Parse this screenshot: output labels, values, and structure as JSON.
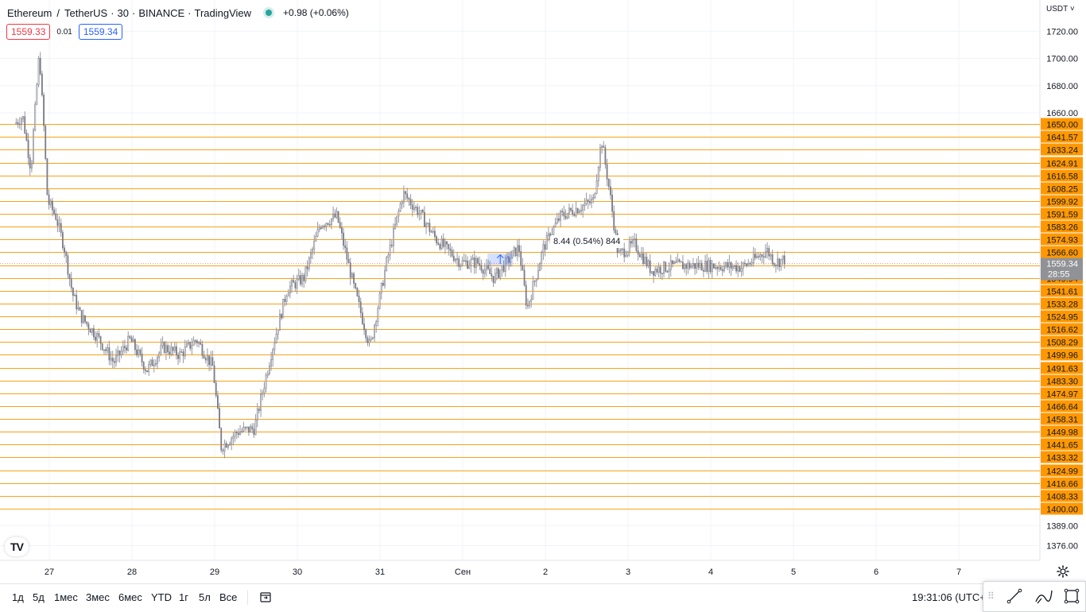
{
  "header": {
    "symbol": "Ethereum",
    "separator": "/",
    "quote": "TetherUS",
    "interval": "30",
    "exchange": "BINANCE",
    "brand": "TradingView",
    "change": "+0.98 (+0.06%)"
  },
  "quotes": {
    "bid": "1559.33",
    "spread": "0.01",
    "ask": "1559.34"
  },
  "currency": "USDT",
  "currency_caret": "˅",
  "measure_tooltip": "8.44 (0.54%) 844",
  "logo_text": "TV",
  "bottom_bar": {
    "ranges": [
      "1д",
      "5д",
      "1мес",
      "3мес",
      "6мес",
      "YTD",
      "1г",
      "5л",
      "Все"
    ],
    "clock": "19:31:06 (UTC+3)"
  },
  "chart_data": {
    "type": "candlestick",
    "y_axis": {
      "range": [
        1368,
        1728
      ],
      "tick_labels": [
        "1720.00",
        "1700.00",
        "1680.00",
        "1660.00",
        "1389.00",
        "1376.00"
      ]
    },
    "x_axis": {
      "tick_labels": [
        "27",
        "28",
        "29",
        "30",
        "31",
        "Сен",
        "2",
        "3",
        "4",
        "5",
        "6",
        "7"
      ]
    },
    "horizontal_levels": [
      "1650.00",
      "1641.57",
      "1633.24",
      "1624.91",
      "1616.58",
      "1608.25",
      "1599.92",
      "1591.59",
      "1583.26",
      "1574.93",
      "1566.60",
      "1558.27",
      "1549.94",
      "1541.61",
      "1533.28",
      "1524.95",
      "1516.62",
      "1508.29",
      "1499.96",
      "1491.63",
      "1483.30",
      "1474.97",
      "1466.64",
      "1458.31",
      "1449.98",
      "1441.65",
      "1433.32",
      "1424.99",
      "1416.66",
      "1408.33",
      "1400.00"
    ],
    "last_price": {
      "value": "1559.34",
      "countdown": "28:55"
    },
    "price_path": [
      [
        26.6,
        1650
      ],
      [
        26.7,
        1655
      ],
      [
        26.8,
        1620
      ],
      [
        26.9,
        1705
      ],
      [
        27.0,
        1600
      ],
      [
        27.1,
        1590
      ],
      [
        27.2,
        1570
      ],
      [
        27.3,
        1540
      ],
      [
        27.4,
        1525
      ],
      [
        27.6,
        1512
      ],
      [
        27.8,
        1495
      ],
      [
        28.0,
        1510
      ],
      [
        28.2,
        1490
      ],
      [
        28.4,
        1505
      ],
      [
        28.6,
        1500
      ],
      [
        28.8,
        1510
      ],
      [
        29.0,
        1492
      ],
      [
        29.1,
        1440
      ],
      [
        29.3,
        1450
      ],
      [
        29.5,
        1452
      ],
      [
        29.7,
        1500
      ],
      [
        29.9,
        1543
      ],
      [
        30.1,
        1550
      ],
      [
        30.3,
        1585
      ],
      [
        30.5,
        1590
      ],
      [
        30.7,
        1545
      ],
      [
        30.9,
        1505
      ],
      [
        31.1,
        1560
      ],
      [
        31.3,
        1605
      ],
      [
        31.5,
        1592
      ],
      [
        31.7,
        1575
      ],
      [
        31.8,
        1570
      ],
      [
        32.0,
        1560
      ],
      [
        32.2,
        1560
      ],
      [
        32.4,
        1550
      ],
      [
        32.7,
        1570
      ],
      [
        32.8,
        1530
      ],
      [
        33.0,
        1570
      ],
      [
        33.2,
        1590
      ],
      [
        33.4,
        1595
      ],
      [
        33.6,
        1600
      ],
      [
        33.7,
        1640
      ],
      [
        33.8,
        1605
      ],
      [
        33.9,
        1565
      ],
      [
        34.1,
        1572
      ],
      [
        34.3,
        1555
      ],
      [
        34.6,
        1558
      ],
      [
        35.0,
        1558
      ],
      [
        35.4,
        1557
      ],
      [
        35.5,
        1560
      ],
      [
        35.7,
        1568
      ],
      [
        35.8,
        1560
      ],
      [
        35.9,
        1562
      ]
    ],
    "measure": {
      "from": 1558,
      "to": 1566,
      "label": "8.44 (0.54%) 844"
    }
  }
}
